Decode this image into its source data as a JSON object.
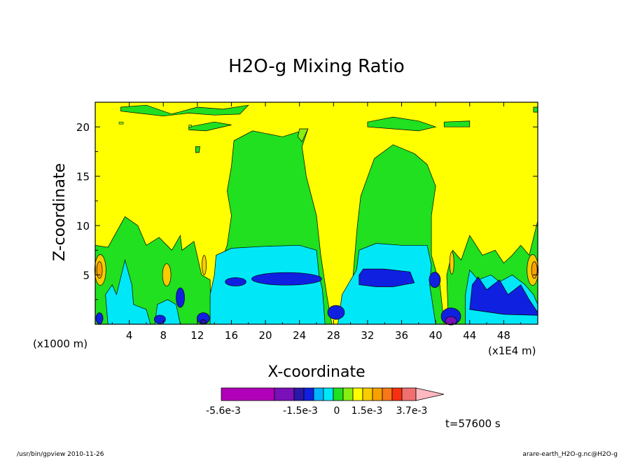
{
  "chart_data": {
    "type": "heatmap",
    "title": "H2O-g Mixing Ratio",
    "xlabel": "X-coordinate",
    "ylabel": "Z-coordinate",
    "x_unit_left": "(x1000 m)",
    "x_unit_right": "(x1E4 m)",
    "xlim": [
      0,
      52
    ],
    "ylim": [
      0,
      22.5
    ],
    "x_ticks": [
      "4",
      "8",
      "12",
      "16",
      "20",
      "24",
      "28",
      "32",
      "36",
      "40",
      "44",
      "48"
    ],
    "x_tick_values": [
      4,
      8,
      12,
      16,
      20,
      24,
      28,
      32,
      36,
      40,
      44,
      48
    ],
    "y_ticks": [
      "5",
      "10",
      "15",
      "20"
    ],
    "y_tick_values": [
      5,
      10,
      15,
      20
    ],
    "time_label": "t=57600 s",
    "colorbar": {
      "labels": [
        "-5.6e-3",
        "-1.5e-3",
        "0",
        "1.5e-3",
        "3.7e-3"
      ],
      "colors": [
        "#b000b8",
        "#7a10b8",
        "#2a18a8",
        "#1020e0",
        "#00b4ff",
        "#00e8f8",
        "#20e020",
        "#88ee10",
        "#ffff00",
        "#f8cc00",
        "#f8a000",
        "#f87818",
        "#f83010",
        "#f07070",
        "#ffb8c0"
      ]
    },
    "regions": [
      {
        "level": "dark-blue",
        "color": "#1020e0",
        "center": [
          22,
          4.3
        ]
      },
      {
        "level": "dark-blue",
        "color": "#1020e0",
        "center": [
          35,
          5
        ]
      },
      {
        "level": "dark-blue",
        "color": "#1020e0",
        "center": [
          47,
          3.3
        ]
      },
      {
        "level": "cyan",
        "color": "#00e8f8",
        "center": [
          20,
          4.5
        ]
      },
      {
        "level": "green",
        "color": "#20e020",
        "center": [
          20,
          13
        ]
      },
      {
        "level": "green",
        "color": "#20e020",
        "center": [
          36,
          12
        ]
      },
      {
        "level": "yellow",
        "color": "#ffff00",
        "center": [
          26,
          14
        ]
      },
      {
        "level": "orange",
        "color": "#f8a000",
        "center": [
          1,
          5.5
        ]
      },
      {
        "level": "purple",
        "color": "#7a10b8",
        "center": [
          41.5,
          0.5
        ]
      }
    ]
  },
  "footer": {
    "left": "/usr/bin/gpview  2010-11-26",
    "right": "arare-earth_H2O-g.nc@H2O-g"
  }
}
